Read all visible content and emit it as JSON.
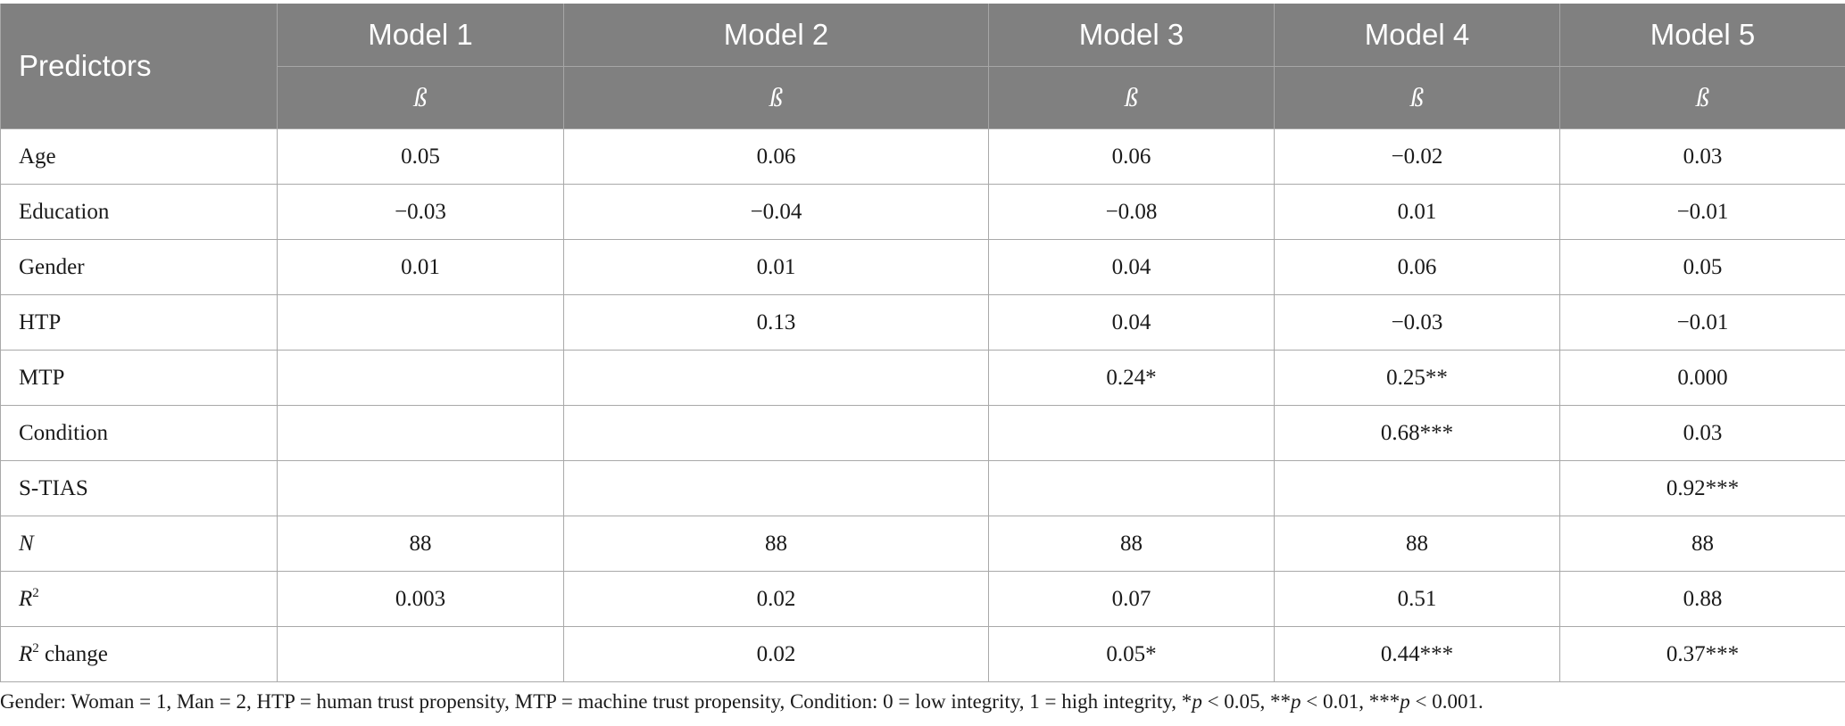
{
  "header": {
    "predictors": "Predictors",
    "models": [
      "Model 1",
      "Model 2",
      "Model 3",
      "Model 4",
      "Model 5"
    ],
    "beta": [
      "ß",
      "ß",
      "ß",
      "ß",
      "ß"
    ]
  },
  "rows": [
    {
      "label": "Age",
      "values": [
        "0.05",
        "0.06",
        "0.06",
        "−0.02",
        "0.03"
      ]
    },
    {
      "label": "Education",
      "values": [
        "−0.03",
        "−0.04",
        "−0.08",
        "0.01",
        "−0.01"
      ]
    },
    {
      "label": "Gender",
      "values": [
        "0.01",
        "0.01",
        "0.04",
        "0.06",
        "0.05"
      ]
    },
    {
      "label": "HTP",
      "values": [
        "",
        "0.13",
        "0.04",
        "−0.03",
        "−0.01"
      ]
    },
    {
      "label": "MTP",
      "values": [
        "",
        "",
        "0.24*",
        "0.25**",
        "0.000"
      ]
    },
    {
      "label": "Condition",
      "values": [
        "",
        "",
        "",
        "0.68***",
        "0.03"
      ]
    },
    {
      "label": "S-TIAS",
      "values": [
        "",
        "",
        "",
        "",
        "0.92***"
      ]
    },
    {
      "label": "N",
      "values": [
        "88",
        "88",
        "88",
        "88",
        "88"
      ]
    },
    {
      "label": "R",
      "sup": "2",
      "values": [
        "0.003",
        "0.02",
        "0.07",
        "0.51",
        "0.88"
      ]
    },
    {
      "label": "R",
      "sup": "2",
      "suffix": " change",
      "values": [
        "",
        "0.02",
        "0.05*",
        "0.44***",
        "0.37***"
      ]
    }
  ],
  "footnote": {
    "part1": "Gender: Woman = 1, Man = 2, HTP = human trust propensity, MTP = machine trust propensity, Condition: 0 = low integrity, 1 = high integrity, *",
    "p": "p",
    "part2": " < 0.05, **",
    "part3": " < 0.01, ***",
    "part4": " < 0.001."
  }
}
